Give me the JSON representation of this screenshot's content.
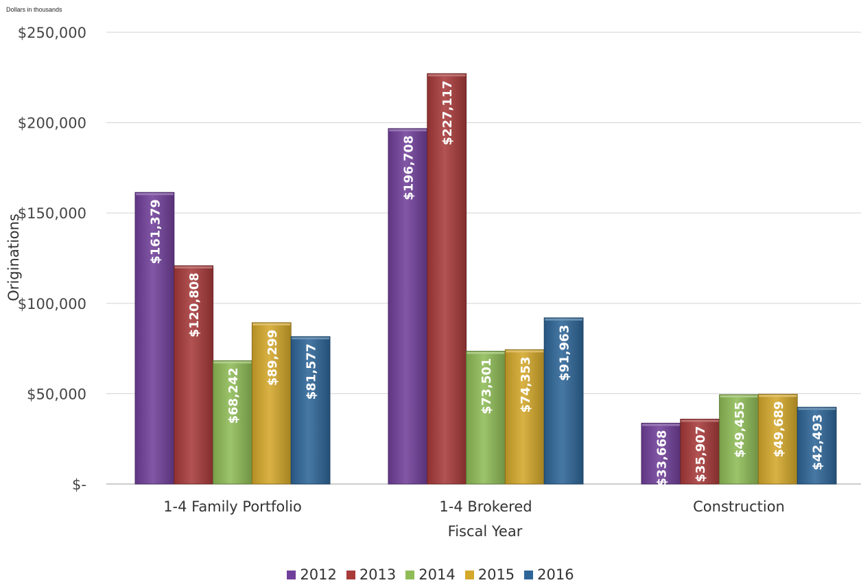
{
  "chart_data": {
    "type": "bar",
    "unit_note": "Dollars in thousands",
    "xlabel": "Fiscal Year",
    "ylabel": "Originations",
    "ylim": [
      0,
      250000
    ],
    "yticks": [
      0,
      50000,
      100000,
      150000,
      200000,
      250000
    ],
    "ytick_labels": [
      "$-",
      "$50,000",
      "$100,000",
      "$150,000",
      "$200,000",
      "$250,000"
    ],
    "grid": true,
    "legend_position": "bottom",
    "categories": [
      "1-4 Family Portfolio",
      "1-4 Brokered",
      "Construction"
    ],
    "series": [
      {
        "name": "2012",
        "color": "#71409A",
        "values": [
          161379,
          196708,
          33668
        ],
        "labels": [
          "$161,379",
          "$196,708",
          "$33,668"
        ]
      },
      {
        "name": "2013",
        "color": "#A83A3A",
        "values": [
          120808,
          227117,
          35907
        ],
        "labels": [
          "$120,808",
          "$227,117",
          "$35,907"
        ]
      },
      {
        "name": "2014",
        "color": "#8FBC57",
        "values": [
          68242,
          73501,
          49455
        ],
        "labels": [
          "$68,242",
          "$73,501",
          "$49,455"
        ]
      },
      {
        "name": "2015",
        "color": "#D4A82A",
        "values": [
          89299,
          74353,
          49689
        ],
        "labels": [
          "$89,299",
          "$74,353",
          "$49,689"
        ]
      },
      {
        "name": "2016",
        "color": "#2E6698",
        "values": [
          81577,
          91963,
          42493
        ],
        "labels": [
          "$81,577",
          "$91,963",
          "$42,493"
        ]
      }
    ]
  }
}
